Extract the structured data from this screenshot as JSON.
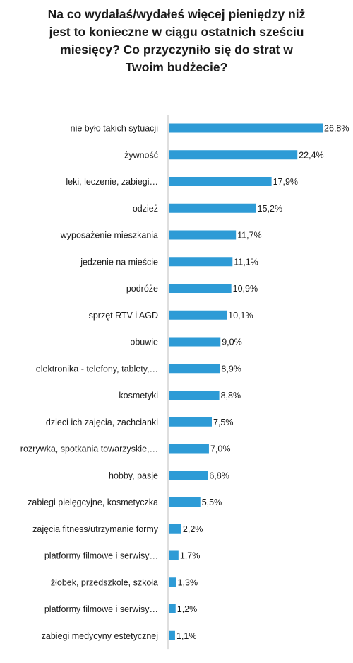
{
  "chart_data": {
    "type": "bar",
    "orientation": "horizontal",
    "title": "Na co wydałaś/wydałeś więcej pieniędzy niż\njest to konieczne w ciągu ostatnich sześciu\nmiesięcy? Co przyczyniło się do strat w\nTwoim budżecie?",
    "categories": [
      "nie było takich sytuacji",
      "żywność",
      "leki, leczenie, zabiegi…",
      "odzież",
      "wyposażenie mieszkania",
      "jedzenie na  mieście",
      "podróże",
      "sprzęt RTV i AGD",
      "obuwie",
      "elektronika -  telefony, tablety,…",
      "kosmetyki",
      "dzieci ich zajęcia, zachcianki",
      "rozrywka, spotkania towarzyskie,…",
      "hobby, pasje",
      "zabiegi pielęgcyjne, kosmetyczka",
      "zajęcia fitness/utrzymanie formy",
      "platformy filmowe i serwisy…",
      "żłobek, przedszkole, szkoła",
      "platformy filmowe i serwisy…",
      "zabiegi medycyny estetycznej"
    ],
    "values": [
      26.8,
      22.4,
      17.9,
      15.2,
      11.7,
      11.1,
      10.9,
      10.1,
      9.0,
      8.9,
      8.8,
      7.5,
      7.0,
      6.8,
      5.5,
      2.2,
      1.7,
      1.3,
      1.2,
      1.1
    ],
    "data_labels": [
      "26,8%",
      "22,4%",
      "17,9%",
      "15,2%",
      "11,7%",
      "11,1%",
      "10,9%",
      "10,1%",
      "9,0%",
      "8,9%",
      "8,8%",
      "7,5%",
      "7,0%",
      "6,8%",
      "5,5%",
      "2,2%",
      "1,7%",
      "1,3%",
      "1,2%",
      "1,1%"
    ],
    "xlim": [
      0,
      26.8
    ],
    "grid": false,
    "legend": "none",
    "colors": {
      "bar": "#2e9bd6",
      "axis": "#bfbfbf",
      "text": "#1a1a1a"
    }
  }
}
